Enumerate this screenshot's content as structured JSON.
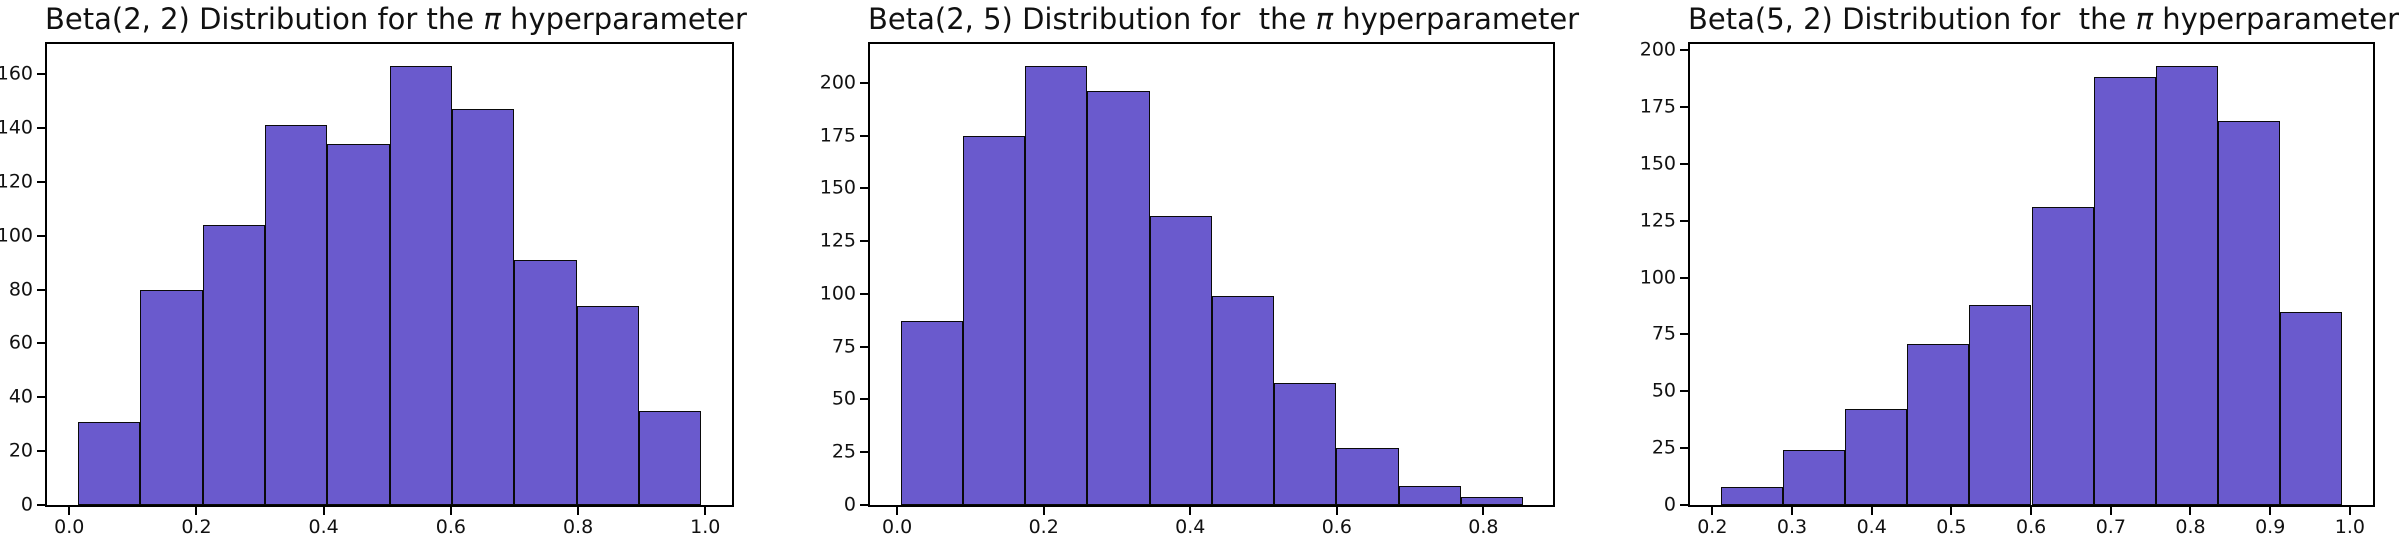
{
  "page": {
    "background_color": "#ffffff",
    "description": "Three matplotlib histogram subplots of Beta distribution samples"
  },
  "chart_data": [
    {
      "type": "bar",
      "subtype": "histogram",
      "title": "Beta(2, 2) Distribution for the π hyperparameter",
      "title_parts": {
        "prefix": "Beta(2, 2) Distribution for the ",
        "pi": "π",
        "suffix": " hyperparameter"
      },
      "values": [
        31,
        80,
        104,
        141,
        134,
        163,
        147,
        91,
        74,
        35
      ],
      "bin_start": 0.014,
      "bin_width": 0.098,
      "xlim": [
        -0.035,
        1.042
      ],
      "ylim": [
        0,
        171.2
      ],
      "xticks": [
        0.0,
        0.2,
        0.4,
        0.6,
        0.8,
        1.0
      ],
      "xtick_labels": [
        "0.0",
        "0.2",
        "0.4",
        "0.6",
        "0.8",
        "1.0"
      ],
      "yticks": [
        0,
        20,
        40,
        60,
        80,
        100,
        120,
        140,
        160
      ],
      "ytick_labels": [
        "0",
        "20",
        "40",
        "60",
        "80",
        "100",
        "120",
        "140",
        "160"
      ],
      "xlabel": "",
      "ylabel": "",
      "grid": false,
      "legend": false,
      "bar_color": "#6A5ACD",
      "edge_color": "#0a0a0a"
    },
    {
      "type": "bar",
      "subtype": "histogram",
      "title": "Beta(2, 5) Distribution for  the π hyperparameter",
      "title_parts": {
        "prefix": "Beta(2, 5) Distribution for  the ",
        "pi": "π",
        "suffix": " hyperparameter"
      },
      "values": [
        87,
        175,
        208,
        196,
        137,
        99,
        58,
        27,
        9,
        4
      ],
      "bin_start": 0.005,
      "bin_width": 0.0849,
      "xlim": [
        -0.037,
        0.895
      ],
      "ylim": [
        0,
        218.4
      ],
      "xticks": [
        0.0,
        0.2,
        0.4,
        0.6,
        0.8
      ],
      "xtick_labels": [
        "0.0",
        "0.2",
        "0.4",
        "0.6",
        "0.8"
      ],
      "yticks": [
        0,
        25,
        50,
        75,
        100,
        125,
        150,
        175,
        200
      ],
      "ytick_labels": [
        "0",
        "25",
        "50",
        "75",
        "100",
        "125",
        "150",
        "175",
        "200"
      ],
      "xlabel": "",
      "ylabel": "",
      "grid": false,
      "legend": false,
      "bar_color": "#6A5ACD",
      "edge_color": "#0a0a0a"
    },
    {
      "type": "bar",
      "subtype": "histogram",
      "title": "Beta(5, 2) Distribution for  the π hyperparameter",
      "title_parts": {
        "prefix": "Beta(5, 2) Distribution for  the ",
        "pi": "π",
        "suffix": " hyperparameter"
      },
      "values": [
        8,
        24,
        42,
        71,
        88,
        131,
        188,
        193,
        169,
        85
      ],
      "bin_start": 0.211,
      "bin_width": 0.0779,
      "xlim": [
        0.172,
        1.029
      ],
      "ylim": [
        0,
        202.7
      ],
      "xticks": [
        0.2,
        0.3,
        0.4,
        0.5,
        0.6,
        0.7,
        0.8,
        0.9,
        1.0
      ],
      "xtick_labels": [
        "0.2",
        "0.3",
        "0.4",
        "0.5",
        "0.6",
        "0.7",
        "0.8",
        "0.9",
        "1.0"
      ],
      "yticks": [
        0,
        25,
        50,
        75,
        100,
        125,
        150,
        175,
        200
      ],
      "ytick_labels": [
        "0",
        "25",
        "50",
        "75",
        "100",
        "125",
        "150",
        "175",
        "200"
      ],
      "xlabel": "",
      "ylabel": "",
      "grid": false,
      "legend": false,
      "bar_color": "#6A5ACD",
      "edge_color": "#0a0a0a"
    }
  ]
}
